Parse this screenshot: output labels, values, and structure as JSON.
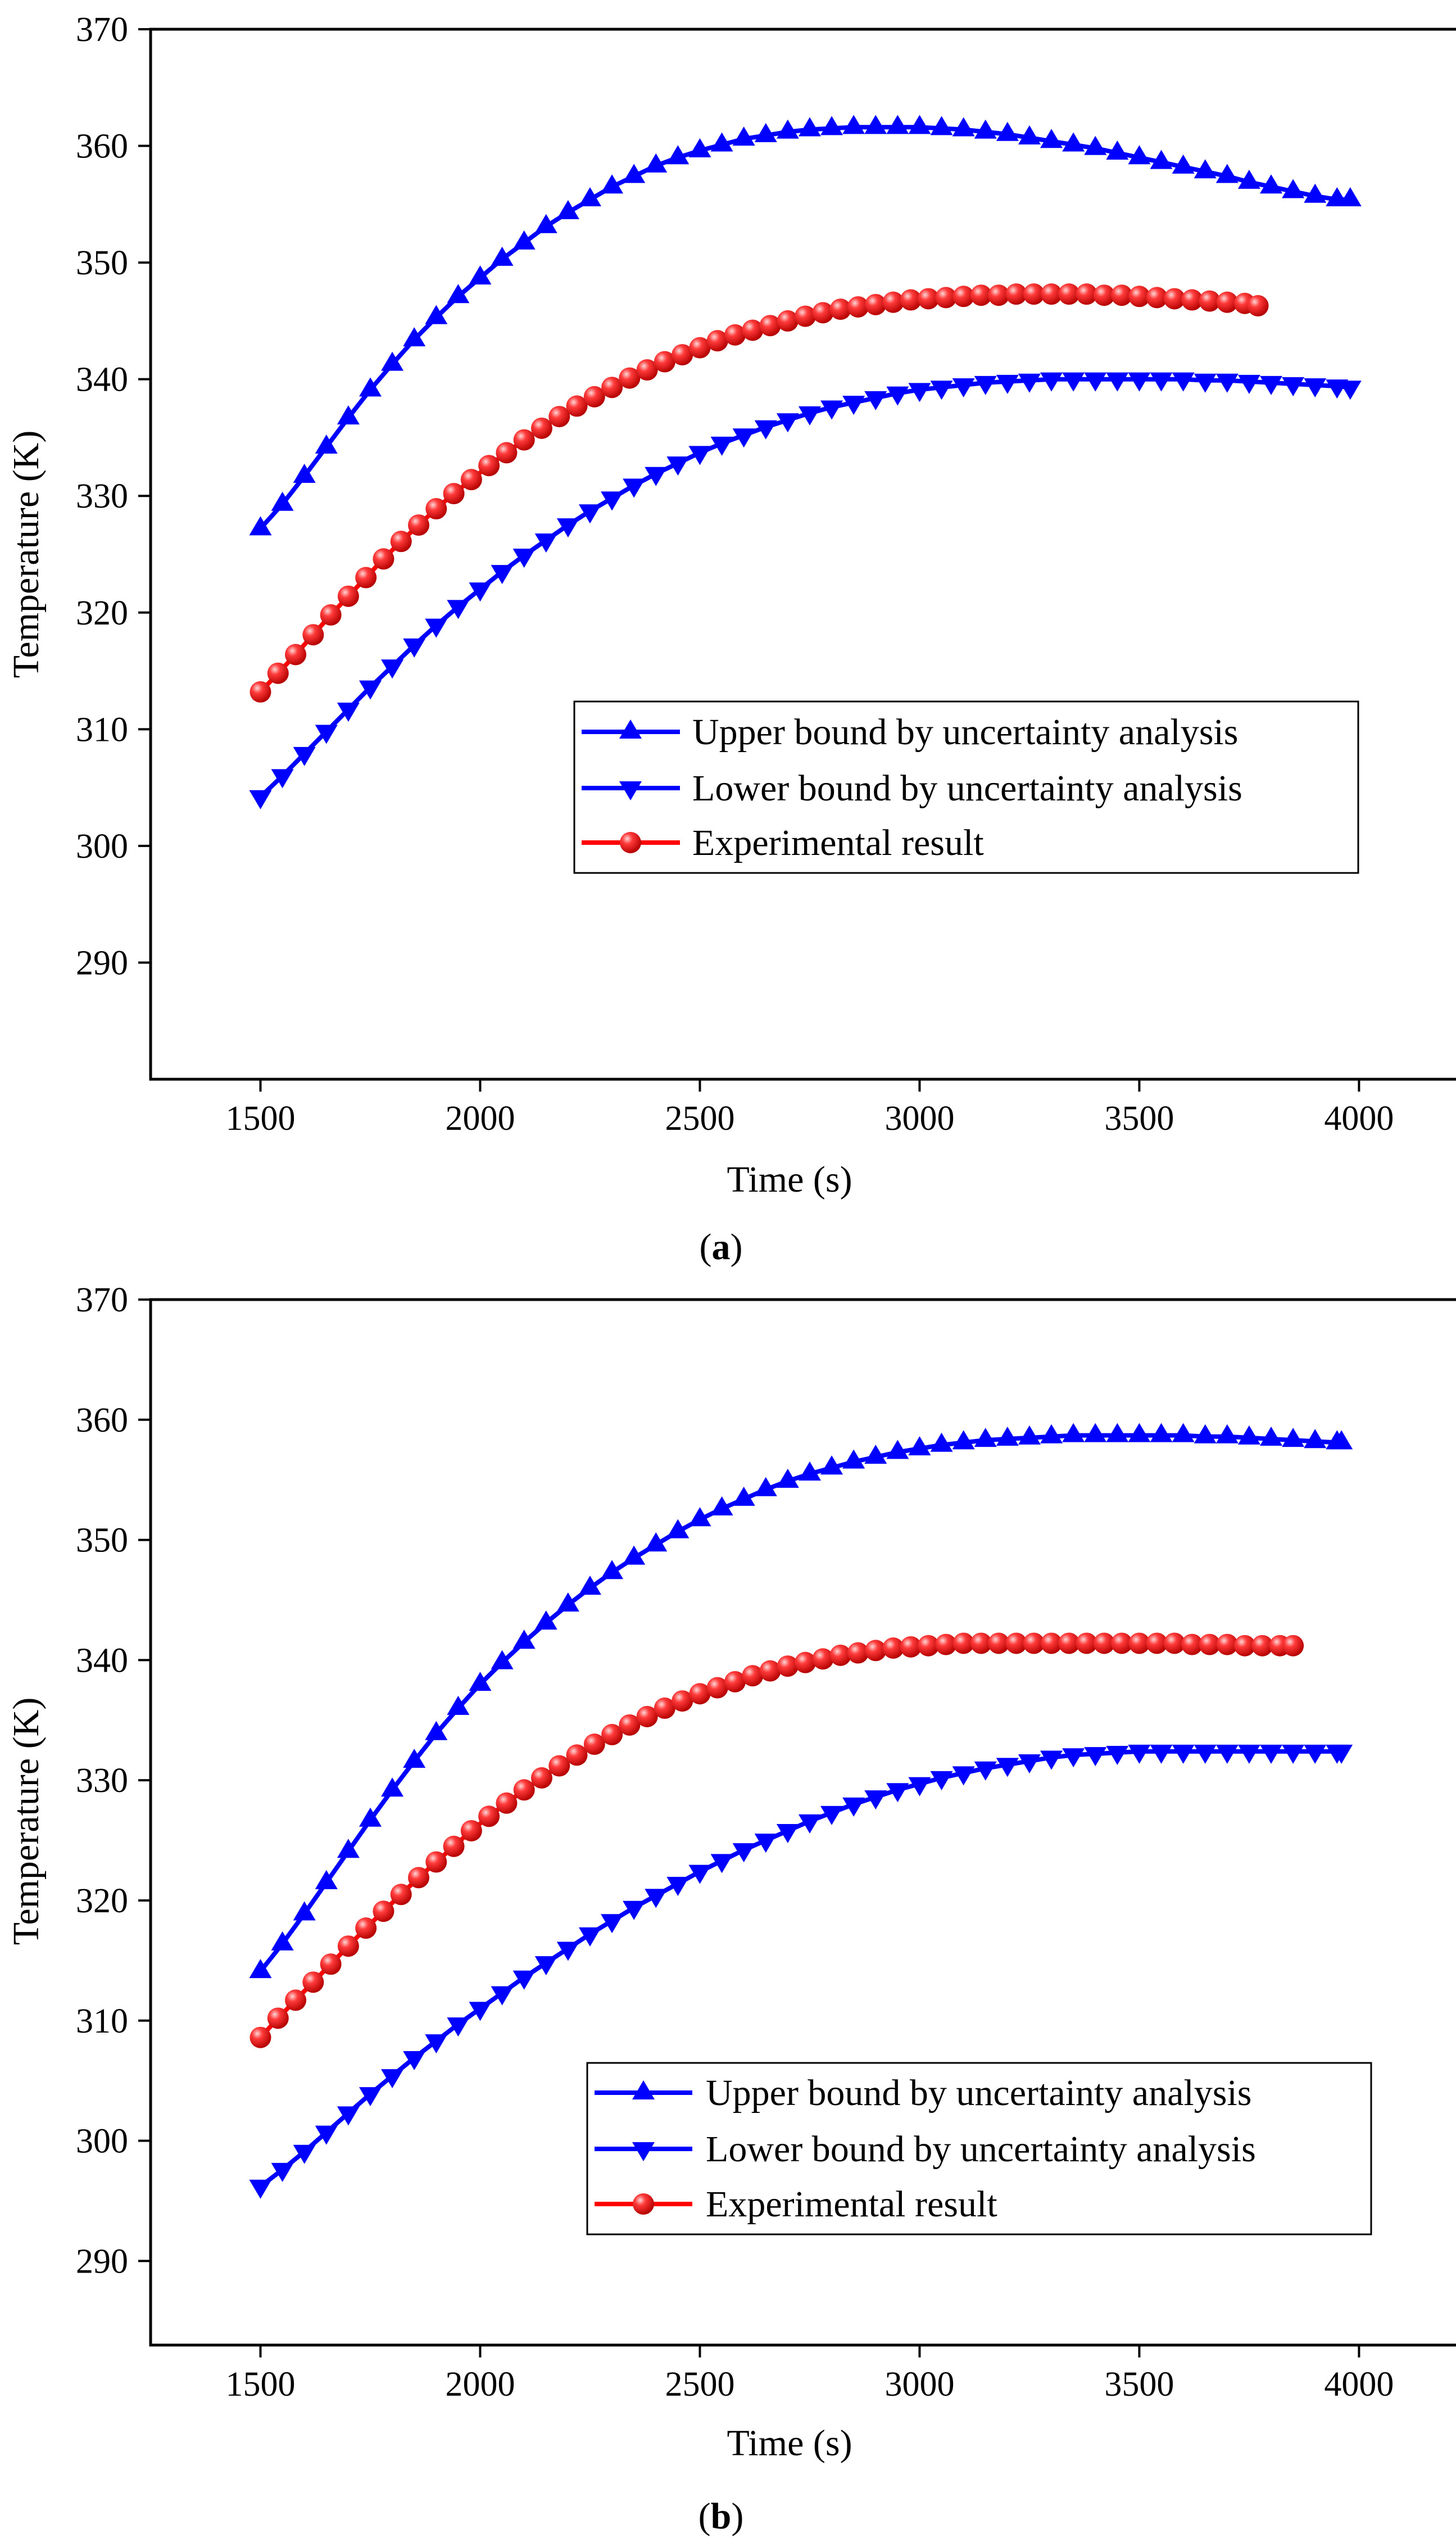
{
  "figure": {
    "captions": [
      {
        "open": "(",
        "letter": "a",
        "close": ")"
      },
      {
        "open": "(",
        "letter": "b",
        "close": ")"
      }
    ]
  },
  "chart_data": [
    {
      "type": "line",
      "panel": "a",
      "xlabel": "Time (s)",
      "ylabel": "Temperature (K)",
      "xlim": [
        1250,
        4300
      ],
      "ylim": [
        280,
        370
      ],
      "xticks": [
        1500,
        2000,
        2500,
        3000,
        3500,
        4000
      ],
      "yticks": [
        290,
        300,
        310,
        320,
        330,
        340,
        350,
        360,
        370
      ],
      "legend_position": "center-right",
      "series": [
        {
          "name": "Upper bound by uncertainty analysis",
          "marker": "triangle-up",
          "color": "#0000ff",
          "x": [
            1500,
            1550,
            1600,
            1650,
            1700,
            1750,
            1800,
            1850,
            1900,
            1950,
            2000,
            2050,
            2100,
            2150,
            2200,
            2250,
            2300,
            2350,
            2400,
            2450,
            2500,
            2550,
            2600,
            2650,
            2700,
            2750,
            2800,
            2850,
            2900,
            2950,
            3000,
            3050,
            3100,
            3150,
            3200,
            3250,
            3300,
            3350,
            3400,
            3450,
            3500,
            3550,
            3600,
            3650,
            3700,
            3750,
            3800,
            3850,
            3900,
            3950,
            3980
          ],
          "y": [
            327.2,
            329.3,
            331.7,
            334.2,
            336.7,
            339.1,
            341.3,
            343.4,
            345.3,
            347.1,
            348.7,
            350.3,
            351.7,
            353.1,
            354.3,
            355.4,
            356.5,
            357.4,
            358.3,
            359.0,
            359.6,
            360.1,
            360.6,
            360.9,
            361.2,
            361.4,
            361.5,
            361.6,
            361.6,
            361.6,
            361.6,
            361.5,
            361.4,
            361.2,
            361.0,
            360.7,
            360.4,
            360.1,
            359.8,
            359.4,
            359.0,
            358.6,
            358.2,
            357.8,
            357.4,
            356.9,
            356.5,
            356.1,
            355.7,
            355.4,
            355.4
          ]
        },
        {
          "name": "Lower bound by uncertainty analysis",
          "marker": "triangle-down",
          "color": "#0000ff",
          "x": [
            1500,
            1550,
            1600,
            1650,
            1700,
            1750,
            1800,
            1850,
            1900,
            1950,
            2000,
            2050,
            2100,
            2150,
            2200,
            2250,
            2300,
            2350,
            2400,
            2450,
            2500,
            2550,
            2600,
            2650,
            2700,
            2750,
            2800,
            2850,
            2900,
            2950,
            3000,
            3050,
            3100,
            3150,
            3200,
            3250,
            3300,
            3350,
            3400,
            3450,
            3500,
            3550,
            3600,
            3650,
            3700,
            3750,
            3800,
            3850,
            3900,
            3950,
            3980
          ],
          "y": [
            304.2,
            306.0,
            307.9,
            309.8,
            311.7,
            313.6,
            315.4,
            317.2,
            318.9,
            320.5,
            322.0,
            323.5,
            324.9,
            326.2,
            327.5,
            328.7,
            329.8,
            330.9,
            331.9,
            332.8,
            333.7,
            334.5,
            335.2,
            335.9,
            336.5,
            337.1,
            337.6,
            338.0,
            338.4,
            338.8,
            339.1,
            339.3,
            339.5,
            339.7,
            339.8,
            339.9,
            340.0,
            340.0,
            340.0,
            340.0,
            340.0,
            340.0,
            340.0,
            339.9,
            339.9,
            339.8,
            339.7,
            339.6,
            339.5,
            339.4,
            339.3
          ]
        },
        {
          "name": "Experimental result",
          "marker": "sphere",
          "color": "#ff0000",
          "x": [
            1500,
            1540,
            1580,
            1620,
            1660,
            1700,
            1740,
            1780,
            1820,
            1860,
            1900,
            1940,
            1980,
            2020,
            2060,
            2100,
            2140,
            2180,
            2220,
            2260,
            2300,
            2340,
            2380,
            2420,
            2460,
            2500,
            2540,
            2580,
            2620,
            2660,
            2700,
            2740,
            2780,
            2820,
            2860,
            2900,
            2940,
            2980,
            3020,
            3060,
            3100,
            3140,
            3180,
            3220,
            3260,
            3300,
            3340,
            3380,
            3420,
            3460,
            3500,
            3540,
            3580,
            3620,
            3660,
            3700,
            3740,
            3770
          ],
          "y": [
            313.2,
            314.8,
            316.4,
            318.1,
            319.8,
            321.4,
            323.0,
            324.6,
            326.1,
            327.5,
            328.9,
            330.2,
            331.4,
            332.6,
            333.7,
            334.8,
            335.8,
            336.8,
            337.7,
            338.5,
            339.3,
            340.1,
            340.8,
            341.5,
            342.1,
            342.7,
            343.3,
            343.8,
            344.2,
            344.6,
            345.0,
            345.4,
            345.7,
            346.0,
            346.2,
            346.4,
            346.6,
            346.8,
            346.9,
            347.0,
            347.1,
            347.2,
            347.2,
            347.3,
            347.3,
            347.3,
            347.3,
            347.3,
            347.2,
            347.2,
            347.1,
            347.0,
            346.9,
            346.8,
            346.7,
            346.6,
            346.5,
            346.3
          ]
        }
      ]
    },
    {
      "type": "line",
      "panel": "b",
      "xlabel": "Time (s)",
      "ylabel": "Temperature (K)",
      "xlim": [
        1250,
        4300
      ],
      "ylim": [
        283,
        370
      ],
      "xticks": [
        1500,
        2000,
        2500,
        3000,
        3500,
        4000
      ],
      "yticks": [
        290,
        300,
        310,
        320,
        330,
        340,
        350,
        360,
        370
      ],
      "legend_position": "lower-right",
      "series": [
        {
          "name": "Upper bound by uncertainty analysis",
          "marker": "triangle-up",
          "color": "#0000ff",
          "x": [
            1500,
            1550,
            1600,
            1650,
            1700,
            1750,
            1800,
            1850,
            1900,
            1950,
            2000,
            2050,
            2100,
            2150,
            2200,
            2250,
            2300,
            2350,
            2400,
            2450,
            2500,
            2550,
            2600,
            2650,
            2700,
            2750,
            2800,
            2850,
            2900,
            2950,
            3000,
            3050,
            3100,
            3150,
            3200,
            3250,
            3300,
            3350,
            3400,
            3450,
            3500,
            3550,
            3600,
            3650,
            3700,
            3750,
            3800,
            3850,
            3900,
            3950,
            3960
          ],
          "y": [
            314.1,
            316.4,
            318.9,
            321.5,
            324.1,
            326.7,
            329.2,
            331.6,
            333.9,
            336.0,
            338.0,
            339.8,
            341.5,
            343.1,
            344.6,
            346.0,
            347.3,
            348.5,
            349.6,
            350.7,
            351.7,
            352.6,
            353.4,
            354.2,
            354.9,
            355.5,
            356.0,
            356.5,
            356.9,
            357.3,
            357.6,
            357.9,
            358.1,
            358.3,
            358.4,
            358.5,
            358.6,
            358.7,
            358.7,
            358.7,
            358.7,
            358.7,
            358.7,
            358.6,
            358.6,
            358.5,
            358.4,
            358.3,
            358.2,
            358.1,
            358.1
          ]
        },
        {
          "name": "Lower bound by uncertainty analysis",
          "marker": "triangle-down",
          "color": "#0000ff",
          "x": [
            1500,
            1550,
            1600,
            1650,
            1700,
            1750,
            1800,
            1850,
            1900,
            1950,
            2000,
            2050,
            2100,
            2150,
            2200,
            2250,
            2300,
            2350,
            2400,
            2450,
            2500,
            2550,
            2600,
            2650,
            2700,
            2750,
            2800,
            2850,
            2900,
            2950,
            3000,
            3050,
            3100,
            3150,
            3200,
            3250,
            3300,
            3350,
            3400,
            3450,
            3500,
            3550,
            3600,
            3650,
            3700,
            3750,
            3800,
            3850,
            3900,
            3950,
            3960
          ],
          "y": [
            296.2,
            297.6,
            299.1,
            300.7,
            302.3,
            303.9,
            305.4,
            306.9,
            308.3,
            309.7,
            311.0,
            312.3,
            313.6,
            314.8,
            316.0,
            317.2,
            318.3,
            319.4,
            320.4,
            321.4,
            322.4,
            323.3,
            324.2,
            325.0,
            325.8,
            326.6,
            327.3,
            328.0,
            328.6,
            329.2,
            329.7,
            330.2,
            330.6,
            331.0,
            331.3,
            331.6,
            331.9,
            332.1,
            332.2,
            332.3,
            332.4,
            332.4,
            332.4,
            332.4,
            332.4,
            332.4,
            332.4,
            332.4,
            332.4,
            332.4,
            332.4
          ]
        },
        {
          "name": "Experimental result",
          "marker": "sphere",
          "color": "#ff0000",
          "x": [
            1500,
            1540,
            1580,
            1620,
            1660,
            1700,
            1740,
            1780,
            1820,
            1860,
            1900,
            1940,
            1980,
            2020,
            2060,
            2100,
            2140,
            2180,
            2220,
            2260,
            2300,
            2340,
            2380,
            2420,
            2460,
            2500,
            2540,
            2580,
            2620,
            2660,
            2700,
            2740,
            2780,
            2820,
            2860,
            2900,
            2940,
            2980,
            3020,
            3060,
            3100,
            3140,
            3180,
            3220,
            3260,
            3300,
            3340,
            3380,
            3420,
            3460,
            3500,
            3540,
            3580,
            3620,
            3660,
            3700,
            3740,
            3780,
            3820,
            3850
          ],
          "y": [
            308.6,
            310.2,
            311.7,
            313.2,
            314.7,
            316.2,
            317.7,
            319.1,
            320.5,
            321.9,
            323.2,
            324.5,
            325.8,
            327.0,
            328.1,
            329.2,
            330.2,
            331.2,
            332.1,
            333.0,
            333.8,
            334.6,
            335.3,
            336.0,
            336.6,
            337.2,
            337.7,
            338.2,
            338.7,
            339.1,
            339.5,
            339.8,
            340.1,
            340.4,
            340.6,
            340.8,
            341.0,
            341.1,
            341.2,
            341.3,
            341.4,
            341.4,
            341.4,
            341.4,
            341.4,
            341.4,
            341.4,
            341.4,
            341.4,
            341.4,
            341.4,
            341.4,
            341.4,
            341.3,
            341.3,
            341.3,
            341.2,
            341.2,
            341.2,
            341.2
          ]
        }
      ]
    }
  ]
}
